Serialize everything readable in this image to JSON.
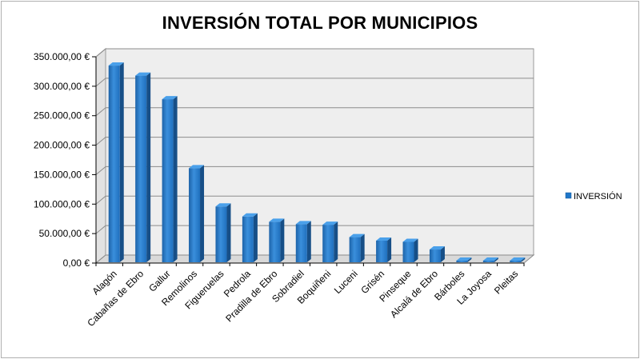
{
  "chart_data": {
    "type": "bar",
    "title": "INVERSIÓN TOTAL POR MUNICIPIOS",
    "xlabel": "",
    "ylabel": "",
    "ylim": [
      0,
      350000
    ],
    "yticks": [
      "0,00 €",
      "50.000,00 €",
      "100.000,00 €",
      "150.000,00 €",
      "200.000,00 €",
      "250.000,00 €",
      "300.000,00 €",
      "350.000,00 €"
    ],
    "categories": [
      "Alagón",
      "Cabañas de Ebro",
      "Gallur",
      "Remolinos",
      "Figueruelas",
      "Pedrola",
      "Pradilla de Ebro",
      "Sobradiel",
      "Boquiñeni",
      "Luceni",
      "Grisén",
      "Pinseque",
      "Alcalá de Ebro",
      "Bárboles",
      "La Joyosa",
      "Pleitas"
    ],
    "series": [
      {
        "name": "INVERSIÓN",
        "color": "#1f77c8",
        "values": [
          335000,
          318000,
          278000,
          161000,
          96000,
          79000,
          70000,
          66000,
          65000,
          44000,
          38000,
          36000,
          23000,
          0,
          0,
          0
        ]
      }
    ],
    "grid": true,
    "legend": "right"
  }
}
